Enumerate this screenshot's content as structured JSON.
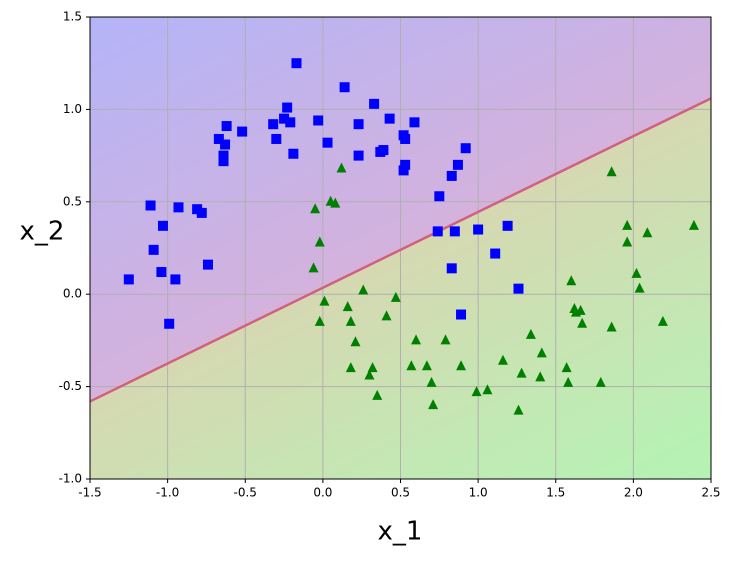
{
  "chart_data": {
    "type": "scatter",
    "xlabel": "x_1",
    "ylabel": "x_2",
    "xlim": [
      -1.5,
      2.5
    ],
    "ylim": [
      -1.0,
      1.5
    ],
    "xticks": [
      -1.5,
      {
        "value": -1,
        "label": "-1.0"
      },
      -0.5,
      {
        "value": 0,
        "label": "0.0"
      },
      0.5,
      {
        "value": 1,
        "label": "1.0"
      },
      1.5,
      {
        "value": 2,
        "label": "2.0"
      },
      2.5
    ],
    "yticks": [
      {
        "value": -1,
        "label": "-1.0"
      },
      -0.5,
      {
        "value": 0,
        "label": "0.0"
      },
      0.5,
      {
        "value": 1,
        "label": "1.0"
      },
      1.5
    ],
    "grid": true,
    "decision_boundary": {
      "x": [
        -1.5,
        2.5
      ],
      "y": [
        -0.58,
        1.06
      ],
      "color": "#d06080"
    },
    "series": [
      {
        "color": "#0000ff",
        "marker": "square",
        "x": [
          -0.17,
          0.14,
          0.33,
          -0.23,
          -0.03,
          0.59,
          0.43,
          -0.52,
          -0.32,
          -0.25,
          -0.21,
          -0.3,
          -0.67,
          -0.62,
          0.23,
          0.52,
          0.53,
          0.03,
          -0.63,
          -0.19,
          0.39,
          0.37,
          0.23,
          0.92,
          0.53,
          -0.64,
          -0.64,
          0.87,
          0.52,
          0.83,
          -1.11,
          -0.93,
          -0.81,
          -0.78,
          -1.03,
          0.75,
          -1.09,
          0.74,
          0.85,
          1.0,
          1.19,
          1.11,
          -0.74,
          -1.04,
          -1.25,
          -0.95,
          0.83,
          1.26,
          0.89,
          -0.99
        ],
        "y": [
          1.25,
          1.12,
          1.03,
          1.01,
          0.94,
          0.93,
          0.95,
          0.88,
          0.92,
          0.95,
          0.93,
          0.84,
          0.84,
          0.91,
          0.92,
          0.86,
          0.84,
          0.82,
          0.81,
          0.76,
          0.78,
          0.77,
          0.75,
          0.79,
          0.7,
          0.75,
          0.72,
          0.7,
          0.67,
          0.64,
          0.48,
          0.47,
          0.46,
          0.44,
          0.37,
          0.53,
          0.24,
          0.34,
          0.34,
          0.35,
          0.37,
          0.22,
          0.16,
          0.12,
          0.08,
          0.08,
          0.14,
          0.03,
          -0.11,
          -0.16
        ]
      },
      {
        "color": "#008000",
        "marker": "triangle",
        "x": [
          1.86,
          0.12,
          0.05,
          0.08,
          -0.05,
          1.96,
          1.96,
          2.09,
          2.39,
          -0.02,
          -0.06,
          1.6,
          2.02,
          2.04,
          0.26,
          0.47,
          0.01,
          0.16,
          1.62,
          1.66,
          1.63,
          1.67,
          2.19,
          0.18,
          -0.02,
          0.41,
          1.86,
          1.34,
          0.6,
          0.21,
          0.79,
          1.41,
          0.89,
          0.67,
          1.16,
          0.57,
          0.32,
          0.18,
          0.3,
          1.57,
          1.28,
          1.4,
          0.7,
          0.99,
          1.06,
          1.58,
          1.79,
          0.35,
          0.71,
          1.26
        ],
        "y": [
          0.66,
          0.68,
          0.5,
          0.49,
          0.46,
          0.37,
          0.28,
          0.33,
          0.37,
          0.28,
          0.14,
          0.07,
          0.11,
          0.03,
          0.02,
          -0.02,
          -0.04,
          -0.07,
          -0.08,
          -0.09,
          -0.1,
          -0.16,
          -0.15,
          -0.15,
          -0.15,
          -0.12,
          -0.18,
          -0.22,
          -0.25,
          -0.26,
          -0.25,
          -0.32,
          -0.39,
          -0.39,
          -0.36,
          -0.39,
          -0.4,
          -0.4,
          -0.44,
          -0.4,
          -0.43,
          -0.45,
          -0.48,
          -0.53,
          -0.52,
          -0.48,
          -0.48,
          -0.55,
          -0.6,
          -0.63
        ]
      }
    ]
  }
}
